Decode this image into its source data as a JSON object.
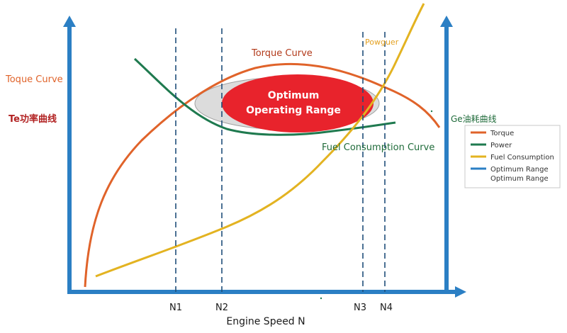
{
  "labels": {
    "left_axis_title": "Toque Curve",
    "left_axis_subtitle": "Te功率曲线",
    "right_axis_title": "Ge油耗曲线",
    "torque_curve": "Torque Curve",
    "power_curve": "Powguer",
    "fuel_curve": "Fuel Consumption Curve",
    "optimum_line1": "Optimum",
    "optimum_line2": "Operating Range",
    "x_axis_title": "Engine Speed N"
  },
  "speed_marks": [
    "N1",
    "N2",
    "N3",
    "N4"
  ],
  "legend": [
    {
      "label": "Torque",
      "color": "#e0632a"
    },
    {
      "label": "Power",
      "color": "#1f7a4f"
    },
    {
      "label": "Fuel Consumption",
      "color": "#e3b321"
    },
    {
      "label": "Optimum Range",
      "color": "#2b7fc4"
    },
    {
      "label": "Optimum Range",
      "color": ""
    }
  ],
  "colors": {
    "axis": "#2b7fc4",
    "torque": "#e0632a",
    "power": "#1f7a4f",
    "fuel": "#e3b321",
    "optimum_fill": "#e8232c",
    "optimum_halo": "#d9d9d9",
    "guide": "#1f4e79",
    "left_title": "#e0632a",
    "left_subtitle": "#b22222",
    "torque_label": "#b23a1a",
    "power_label": "#e3a021",
    "fuel_label": "#1f6b3a",
    "right_title": "#1f6b3a"
  }
}
